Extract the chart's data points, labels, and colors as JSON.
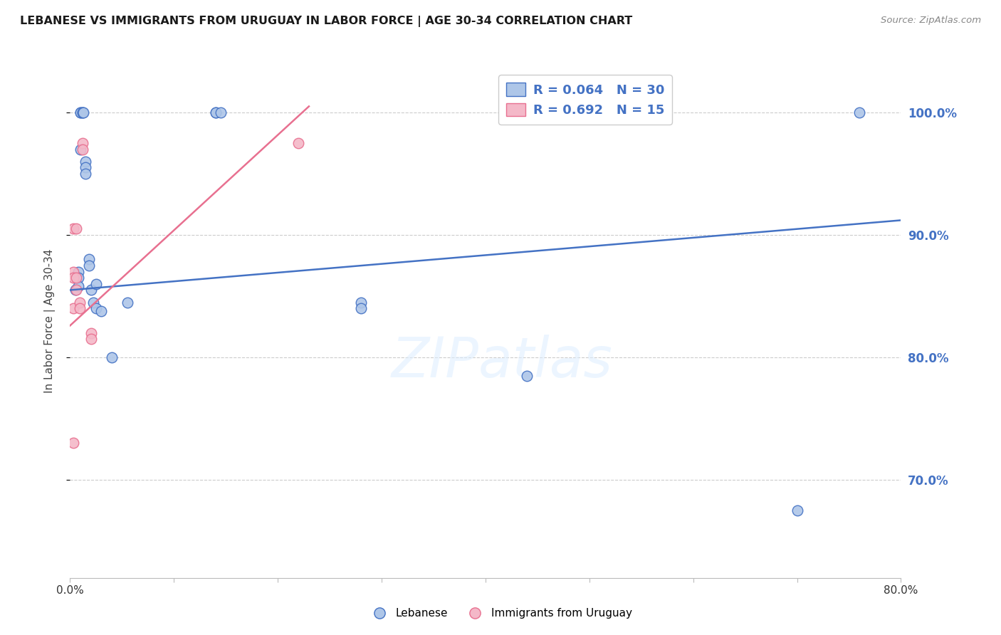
{
  "title": "LEBANESE VS IMMIGRANTS FROM URUGUAY IN LABOR FORCE | AGE 30-34 CORRELATION CHART",
  "source": "Source: ZipAtlas.com",
  "ylabel": "In Labor Force | Age 30-34",
  "watermark": "ZIPatlas",
  "blue_scatter_x": [
    0.005,
    0.008,
    0.008,
    0.008,
    0.01,
    0.01,
    0.01,
    0.012,
    0.012,
    0.013,
    0.015,
    0.015,
    0.015,
    0.018,
    0.018,
    0.02,
    0.022,
    0.025,
    0.025,
    0.03,
    0.04,
    0.055,
    0.14,
    0.14,
    0.145,
    0.28,
    0.28,
    0.44,
    0.7,
    0.76
  ],
  "blue_scatter_y": [
    0.855,
    0.87,
    0.865,
    0.858,
    1.0,
    1.0,
    0.97,
    1.0,
    1.0,
    1.0,
    0.96,
    0.955,
    0.95,
    0.88,
    0.875,
    0.855,
    0.845,
    0.86,
    0.84,
    0.838,
    0.8,
    0.845,
    1.0,
    1.0,
    1.0,
    0.845,
    0.84,
    0.785,
    0.675,
    1.0
  ],
  "pink_scatter_x": [
    0.003,
    0.003,
    0.003,
    0.003,
    0.003,
    0.006,
    0.006,
    0.006,
    0.009,
    0.009,
    0.012,
    0.012,
    0.02,
    0.02,
    0.22
  ],
  "pink_scatter_y": [
    0.905,
    0.87,
    0.865,
    0.84,
    0.73,
    0.905,
    0.865,
    0.855,
    0.845,
    0.84,
    0.975,
    0.97,
    0.82,
    0.815,
    0.975
  ],
  "blue_color": "#aec6e8",
  "pink_color": "#f4b8c8",
  "blue_line_color": "#4472c4",
  "pink_line_color": "#e87090",
  "background_color": "#ffffff",
  "grid_color": "#cccccc",
  "right_axis_color": "#4472c4",
  "title_color": "#1a1a1a",
  "source_color": "#888888",
  "xlim": [
    0.0,
    0.8
  ],
  "ylim": [
    0.62,
    1.04
  ],
  "yticks": [
    0.7,
    0.8,
    0.9,
    1.0
  ],
  "ytick_labels": [
    "70.0%",
    "80.0%",
    "90.0%",
    "100.0%"
  ],
  "blue_line_x": [
    0.0,
    0.8
  ],
  "blue_line_y": [
    0.855,
    0.912
  ],
  "pink_line_x": [
    0.0,
    0.23
  ],
  "pink_line_y": [
    0.826,
    1.005
  ]
}
